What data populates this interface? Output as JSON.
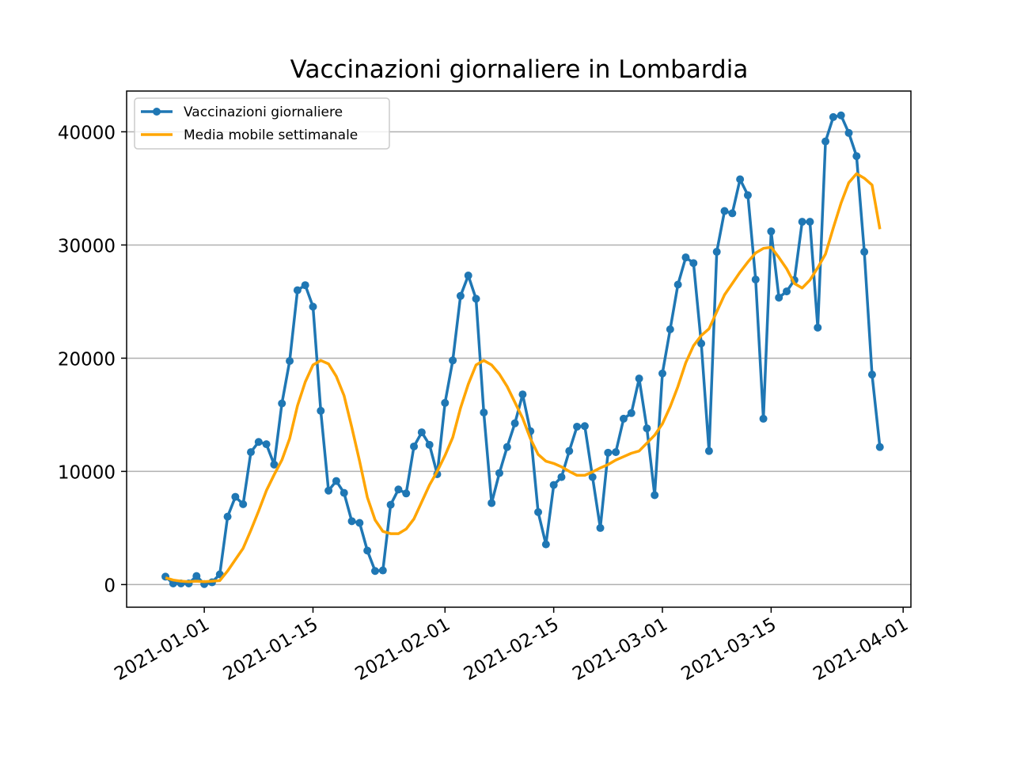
{
  "chart_data": {
    "type": "line",
    "title": "Vaccinazioni giornaliere in Lombardia",
    "x": [
      "2020-12-27",
      "2020-12-28",
      "2020-12-29",
      "2020-12-30",
      "2020-12-31",
      "2021-01-01",
      "2021-01-02",
      "2021-01-03",
      "2021-01-04",
      "2021-01-05",
      "2021-01-06",
      "2021-01-07",
      "2021-01-08",
      "2021-01-09",
      "2021-01-10",
      "2021-01-11",
      "2021-01-12",
      "2021-01-13",
      "2021-01-14",
      "2021-01-15",
      "2021-01-16",
      "2021-01-17",
      "2021-01-18",
      "2021-01-19",
      "2021-01-20",
      "2021-01-21",
      "2021-01-22",
      "2021-01-23",
      "2021-01-24",
      "2021-01-25",
      "2021-01-26",
      "2021-01-27",
      "2021-01-28",
      "2021-01-29",
      "2021-01-30",
      "2021-01-31",
      "2021-02-01",
      "2021-02-02",
      "2021-02-03",
      "2021-02-04",
      "2021-02-05",
      "2021-02-06",
      "2021-02-07",
      "2021-02-08",
      "2021-02-09",
      "2021-02-10",
      "2021-02-11",
      "2021-02-12",
      "2021-02-13",
      "2021-02-14",
      "2021-02-15",
      "2021-02-16",
      "2021-02-17",
      "2021-02-18",
      "2021-02-19",
      "2021-02-20",
      "2021-02-21",
      "2021-02-22",
      "2021-02-23",
      "2021-02-24",
      "2021-02-25",
      "2021-02-26",
      "2021-02-27",
      "2021-02-28",
      "2021-03-01",
      "2021-03-02",
      "2021-03-03",
      "2021-03-04",
      "2021-03-05",
      "2021-03-06",
      "2021-03-07",
      "2021-03-08",
      "2021-03-09",
      "2021-03-10",
      "2021-03-11",
      "2021-03-12",
      "2021-03-13",
      "2021-03-14",
      "2021-03-15",
      "2021-03-16",
      "2021-03-17",
      "2021-03-18",
      "2021-03-19",
      "2021-03-20",
      "2021-03-21",
      "2021-03-22",
      "2021-03-23",
      "2021-03-24",
      "2021-03-25",
      "2021-03-26",
      "2021-03-27",
      "2021-03-28",
      "2021-03-29"
    ],
    "series": [
      {
        "name": "Vaccinazioni giornaliere",
        "color": "#1f77b4",
        "marker": true,
        "values": [
          700,
          100,
          100,
          100,
          750,
          50,
          200,
          900,
          6000,
          7750,
          7100,
          11700,
          12600,
          12400,
          10600,
          16000,
          19750,
          26000,
          26450,
          24550,
          15350,
          8300,
          9150,
          8100,
          5600,
          5450,
          3000,
          1200,
          1250,
          7050,
          8400,
          8050,
          12200,
          13450,
          12350,
          9750,
          16050,
          19800,
          25500,
          27300,
          25250,
          15200,
          7200,
          9850,
          12150,
          14250,
          16800,
          13550,
          6400,
          3550,
          8800,
          9500,
          11800,
          13950,
          14000,
          9500,
          5000,
          11650,
          11700,
          14650,
          15150,
          18200,
          13800,
          7900,
          18650,
          22550,
          26500,
          28900,
          28400,
          21300,
          11800,
          29400,
          33000,
          32800,
          35800,
          34400,
          26950,
          14650,
          31200,
          25350,
          25900,
          26900,
          32050,
          32050,
          22700,
          39150,
          41300,
          41450,
          39900,
          37850,
          29400,
          18550,
          12150
        ]
      },
      {
        "name": "Media mobile settimanale",
        "color": "#ffa500",
        "marker": false,
        "values": [
          600,
          400,
          300,
          250,
          300,
          250,
          300,
          350,
          1200,
          2200,
          3200,
          4800,
          6500,
          8300,
          9700,
          11000,
          12900,
          15800,
          17900,
          19400,
          19800,
          19500,
          18400,
          16700,
          13900,
          10900,
          7700,
          5700,
          4700,
          4500,
          4500,
          4900,
          5800,
          7300,
          8800,
          10000,
          11400,
          13000,
          15600,
          17700,
          19400,
          19800,
          19400,
          18600,
          17500,
          16100,
          14700,
          12900,
          11500,
          10900,
          10700,
          10400,
          10000,
          9650,
          9650,
          9950,
          10300,
          10600,
          11000,
          11300,
          11600,
          11800,
          12500,
          13200,
          14200,
          15700,
          17500,
          19600,
          21100,
          22000,
          22600,
          24100,
          25600,
          26600,
          27600,
          28500,
          29300,
          29700,
          29800,
          28900,
          27900,
          26600,
          26200,
          26900,
          28000,
          29200,
          31500,
          33700,
          35500,
          36300,
          35900,
          35300,
          31400
        ]
      }
    ],
    "xlim": [
      "2020-12-22",
      "2021-04-02"
    ],
    "xticks": [
      "2021-01-01",
      "2021-01-15",
      "2021-02-01",
      "2021-02-15",
      "2021-03-01",
      "2021-03-15",
      "2021-04-01"
    ],
    "ylim": [
      -2000,
      43600
    ],
    "yticks": [
      0,
      10000,
      20000,
      30000,
      40000
    ],
    "grid": "y",
    "legend": "upper left"
  }
}
